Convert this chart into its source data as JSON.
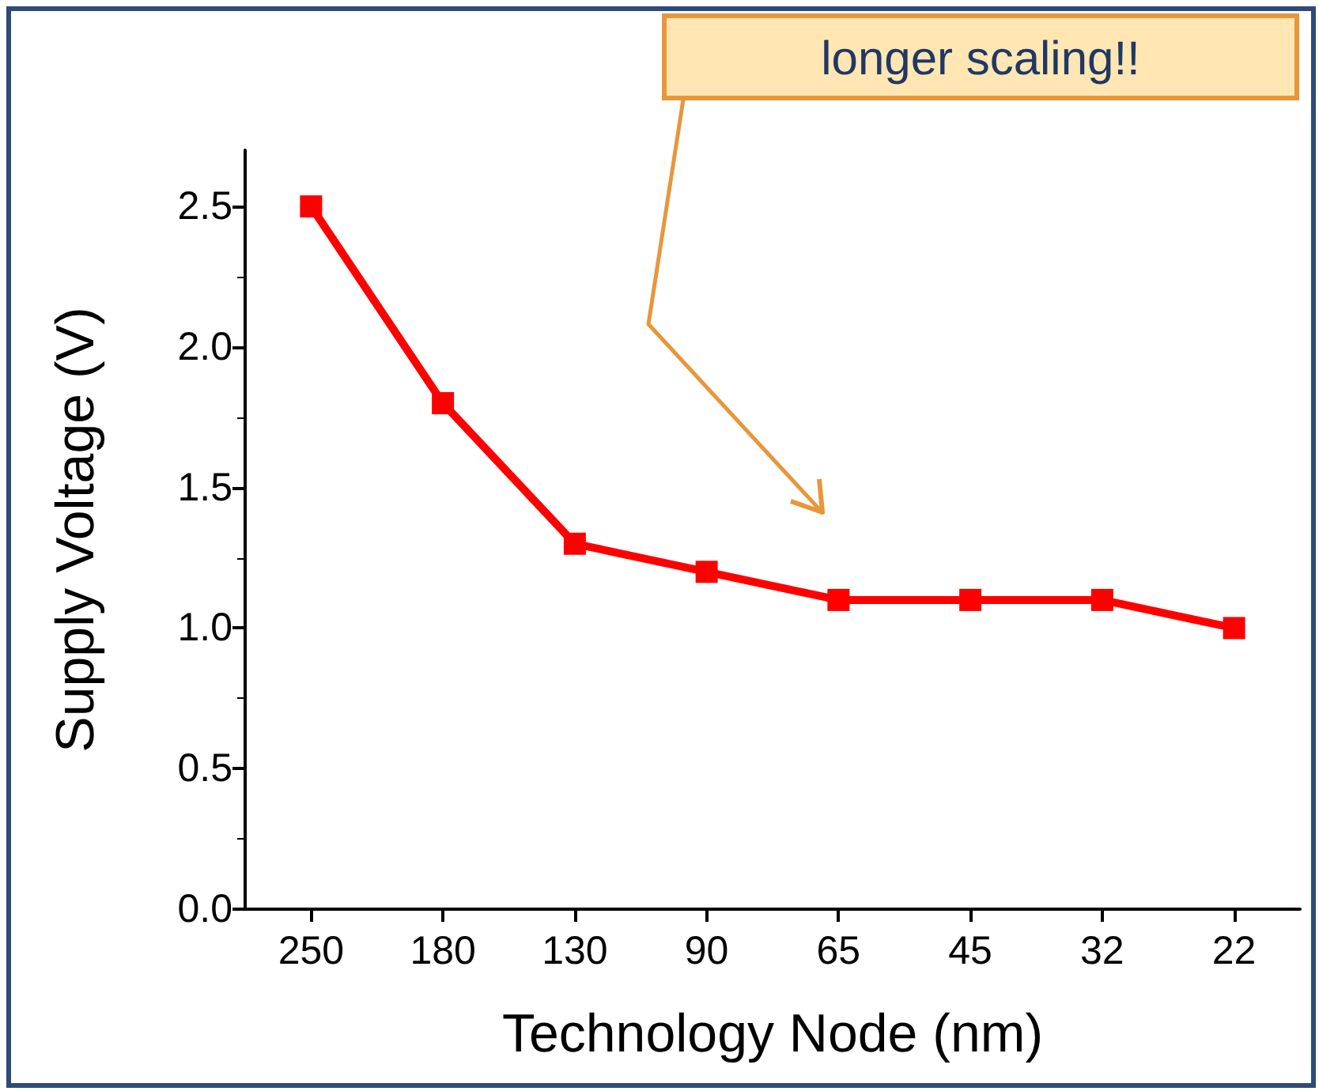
{
  "chart_data": {
    "type": "line",
    "xlabel": "Technology Node (nm)",
    "ylabel": "Supply Voltage (V)",
    "categories": [
      "250",
      "180",
      "130",
      "90",
      "65",
      "45",
      "32",
      "22"
    ],
    "series": [
      {
        "color": "#ff0000",
        "values": [
          2.5,
          1.8,
          1.3,
          1.2,
          1.1,
          1.1,
          1.1,
          1.0
        ]
      }
    ],
    "ylim": [
      0,
      2.7
    ],
    "yticks": [
      {
        "value": 0,
        "label": "0.0"
      },
      0.5,
      {
        "value": 1,
        "label": "1.0"
      },
      1.5,
      {
        "value": 2,
        "label": "2.0"
      },
      2.5
    ],
    "marker": "square",
    "line_style": "solid",
    "grid": false,
    "annotations": [
      "longer scaling!!"
    ]
  }
}
